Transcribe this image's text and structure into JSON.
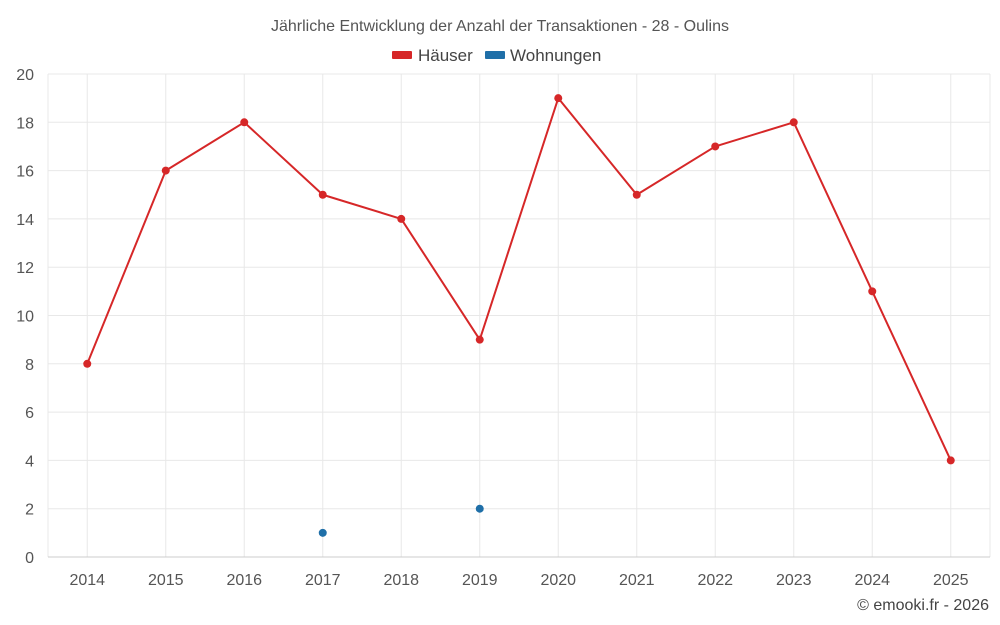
{
  "chart_data": {
    "type": "line",
    "title": "Jährliche Entwicklung der Anzahl der Transaktionen - 28 - Oulins",
    "categories": [
      "2014",
      "2015",
      "2016",
      "2017",
      "2018",
      "2019",
      "2020",
      "2021",
      "2022",
      "2023",
      "2024",
      "2025"
    ],
    "series": [
      {
        "name": "Häuser",
        "color": "#d62728",
        "values": [
          8,
          16,
          18,
          15,
          14,
          9,
          19,
          15,
          17,
          18,
          11,
          4
        ]
      },
      {
        "name": "Wohnungen",
        "color": "#1f6fa8",
        "values": [
          null,
          null,
          null,
          1,
          null,
          2,
          null,
          null,
          null,
          null,
          null,
          null
        ]
      }
    ],
    "ylim": [
      0,
      20
    ],
    "yticks": [
      "0",
      "2",
      "4",
      "6",
      "8",
      "10",
      "12",
      "14",
      "16",
      "18",
      "20"
    ],
    "xlabel": "",
    "ylabel": "",
    "grid": true,
    "legend_position": "top-center"
  },
  "credit": "© emooki.fr - 2026"
}
